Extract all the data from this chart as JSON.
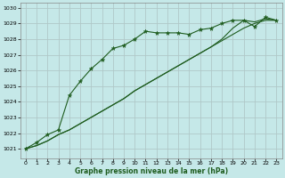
{
  "xlabel": "Graphe pression niveau de la mer (hPa)",
  "background_color": "#c5e8e8",
  "grid_color": "#b0c8c8",
  "line_color": "#1e5c1e",
  "ylim": [
    1020.4,
    1030.3
  ],
  "xlim": [
    -0.5,
    23.5
  ],
  "yticks": [
    1021,
    1022,
    1023,
    1024,
    1025,
    1026,
    1027,
    1028,
    1029,
    1030
  ],
  "xticks": [
    0,
    1,
    2,
    3,
    4,
    5,
    6,
    7,
    8,
    9,
    10,
    11,
    12,
    13,
    14,
    15,
    16,
    17,
    18,
    19,
    20,
    21,
    22,
    23
  ],
  "series1_x": [
    0,
    1,
    2,
    3,
    4,
    5,
    6,
    7,
    8,
    9,
    10,
    11,
    12,
    13,
    14,
    15,
    16,
    17,
    18,
    19,
    20,
    21,
    22,
    23
  ],
  "series1_y": [
    1021.0,
    1021.4,
    1021.9,
    1022.2,
    1024.4,
    1025.3,
    1026.1,
    1026.7,
    1027.4,
    1027.6,
    1028.0,
    1028.5,
    1028.4,
    1028.4,
    1028.4,
    1028.3,
    1028.6,
    1028.7,
    1029.0,
    1029.2,
    1029.2,
    1028.8,
    1029.4,
    1029.2
  ],
  "series2_x": [
    0,
    1,
    2,
    3,
    4,
    5,
    6,
    7,
    8,
    9,
    10,
    11,
    12,
    13,
    14,
    15,
    16,
    17,
    18,
    19,
    20,
    21,
    22,
    23
  ],
  "series2_y": [
    1021.0,
    1021.2,
    1021.5,
    1021.9,
    1022.2,
    1022.6,
    1023.0,
    1023.4,
    1023.8,
    1024.2,
    1024.7,
    1025.1,
    1025.5,
    1025.9,
    1026.3,
    1026.7,
    1027.1,
    1027.5,
    1027.9,
    1028.3,
    1028.7,
    1029.0,
    1029.2,
    1029.2
  ],
  "series3_x": [
    0,
    1,
    2,
    3,
    4,
    5,
    6,
    7,
    8,
    9,
    10,
    11,
    12,
    13,
    14,
    15,
    16,
    17,
    18,
    19,
    20,
    21,
    22,
    23
  ],
  "series3_y": [
    1021.0,
    1021.2,
    1021.5,
    1021.9,
    1022.2,
    1022.6,
    1023.0,
    1023.4,
    1023.8,
    1024.2,
    1024.7,
    1025.1,
    1025.5,
    1025.9,
    1026.3,
    1026.7,
    1027.1,
    1027.5,
    1028.0,
    1028.7,
    1029.2,
    1029.1,
    1029.3,
    1029.2
  ]
}
